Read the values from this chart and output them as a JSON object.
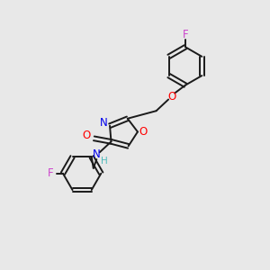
{
  "bg_color": "#e8e8e8",
  "bond_color": "#1a1a1a",
  "N_color": "#0000ee",
  "O_color": "#ff0000",
  "F_color": "#cc44cc",
  "H_color": "#4dbbbb",
  "lw": 1.4,
  "sep": 0.09,
  "fs": 8.5,
  "xlim": [
    0,
    10
  ],
  "ylim": [
    0,
    10
  ]
}
